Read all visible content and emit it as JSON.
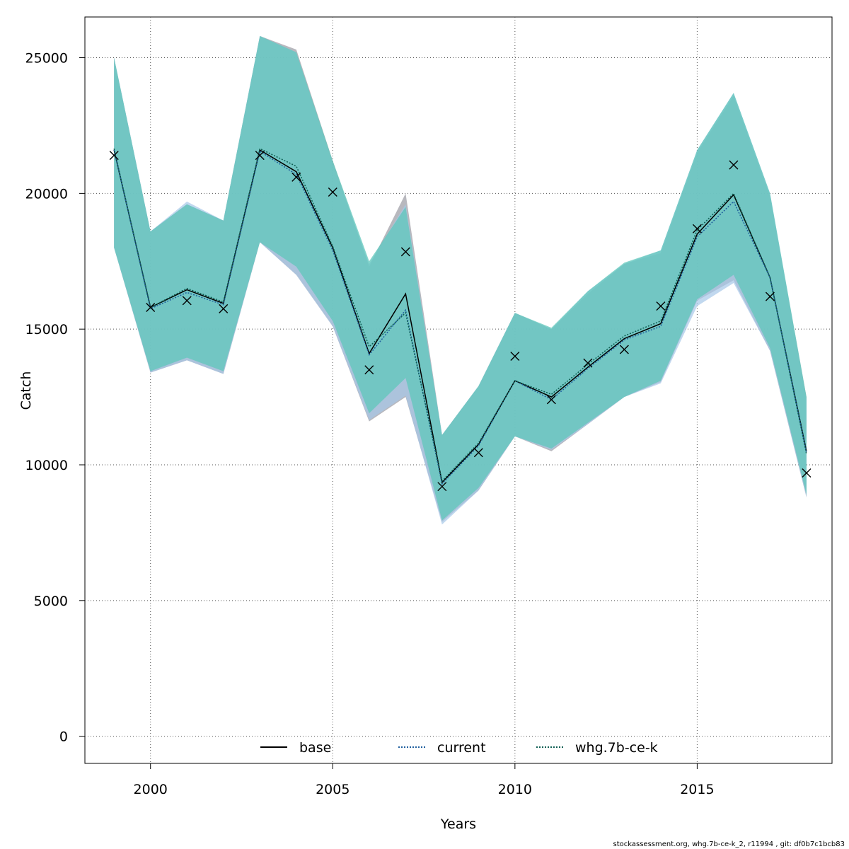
{
  "chart_data": {
    "type": "line",
    "xlabel": "Years",
    "ylabel": "Catch",
    "xlim": [
      1998.2,
      2018.7
    ],
    "ylim": [
      -1000,
      26500
    ],
    "x_ticks": [
      2000,
      2005,
      2010,
      2015
    ],
    "y_ticks": [
      0,
      5000,
      10000,
      15000,
      20000,
      25000
    ],
    "grid": true,
    "legend_position": "bottom-center",
    "x": [
      1999,
      2000,
      2001,
      2002,
      2003,
      2004,
      2005,
      2006,
      2007,
      2008,
      2009,
      2010,
      2011,
      2012,
      2013,
      2014,
      2015,
      2016,
      2017,
      2018
    ],
    "series": [
      {
        "name": "base",
        "line_style": "solid",
        "color": "#000000",
        "band_color": "#9a9aa2",
        "values": [
          21600,
          15800,
          16450,
          15950,
          21600,
          20800,
          18000,
          14100,
          16300,
          9350,
          10750,
          13100,
          12500,
          13600,
          14650,
          15200,
          18500,
          19950,
          16900,
          10500
        ],
        "upper": [
          25000,
          18600,
          19600,
          19000,
          25800,
          25300,
          21200,
          17300,
          20000,
          11100,
          12900,
          15600,
          15000,
          16300,
          17400,
          17800,
          21500,
          23600,
          19900,
          12500
        ],
        "lower": [
          18000,
          13400,
          13850,
          13350,
          18200,
          17000,
          15100,
          11600,
          12500,
          7900,
          9050,
          11050,
          10500,
          11500,
          12500,
          13050,
          16050,
          16800,
          14200,
          8800
        ]
      },
      {
        "name": "current",
        "line_style": "dotted",
        "color": "#1f5f9e",
        "band_color": "#a6c8e8",
        "values": [
          21600,
          15750,
          16350,
          15900,
          21550,
          20700,
          17900,
          14050,
          15700,
          9300,
          10700,
          13100,
          12400,
          13550,
          14600,
          15100,
          18400,
          19700,
          16900,
          10450
        ],
        "upper": [
          25000,
          18600,
          19700,
          19000,
          25800,
          25200,
          21100,
          17400,
          19600,
          11100,
          12900,
          15600,
          15000,
          16400,
          17400,
          17900,
          21600,
          23700,
          20000,
          12400
        ],
        "lower": [
          18000,
          13400,
          13850,
          13350,
          18200,
          17000,
          15100,
          11650,
          12550,
          7800,
          9050,
          11050,
          10550,
          11500,
          12500,
          13000,
          15850,
          16700,
          14200,
          8800
        ]
      },
      {
        "name": "whg.7b-ce-k",
        "line_style": "dotted",
        "color": "#0d5e52",
        "band_color": "#5fc7bb",
        "values": [
          21650,
          15800,
          16500,
          16000,
          21650,
          21000,
          18050,
          14350,
          15600,
          9400,
          10800,
          13100,
          12600,
          13700,
          14750,
          15300,
          18650,
          20000,
          16900,
          10400
        ],
        "upper": [
          25000,
          18600,
          19600,
          19000,
          25800,
          25200,
          21200,
          17500,
          19500,
          11100,
          12900,
          15600,
          15050,
          16400,
          17450,
          17900,
          21600,
          23700,
          20000,
          12500
        ],
        "lower": [
          18000,
          13450,
          13950,
          13450,
          18200,
          17300,
          15300,
          11900,
          13200,
          7950,
          9150,
          11050,
          10600,
          11550,
          12500,
          13100,
          16100,
          17000,
          14300,
          8900
        ]
      }
    ],
    "observations": {
      "marker": "x",
      "values": [
        21400,
        15800,
        16050,
        15750,
        21400,
        20600,
        20050,
        13500,
        17850,
        9200,
        10450,
        14000,
        12400,
        13750,
        14250,
        15850,
        18700,
        21050,
        16200,
        9700
      ]
    },
    "legend": [
      "base",
      "current",
      "whg.7b-ce-k"
    ]
  },
  "footer": "stockassessment.org, whg.7b-ce-k_2, r11994 , git: df0b7c1bcb83"
}
